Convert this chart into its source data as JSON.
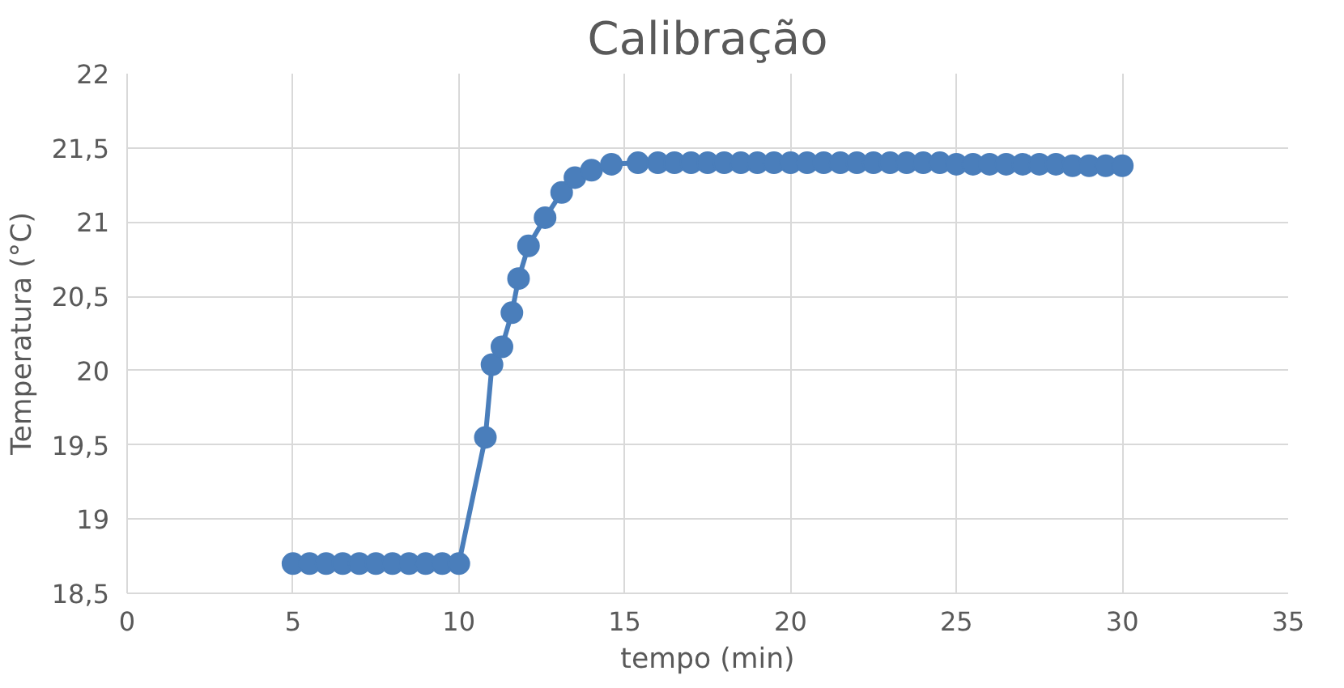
{
  "chart_data": {
    "type": "line",
    "title": "Calibração",
    "xlabel": "tempo (min)",
    "ylabel": "Temperatura (°C)",
    "x": [
      5,
      5.5,
      6,
      6.5,
      7,
      7.5,
      8,
      8.5,
      9,
      9.5,
      10,
      10.8,
      11.0,
      11.3,
      11.6,
      11.8,
      12.1,
      12.6,
      13.1,
      13.5,
      14.0,
      14.6,
      15.4,
      16,
      16.5,
      17,
      17.5,
      18,
      18.5,
      19,
      19.5,
      20,
      20.5,
      21,
      21.5,
      22,
      22.5,
      23,
      23.5,
      24,
      24.5,
      25,
      25.5,
      26,
      26.5,
      27,
      27.5,
      28,
      28.5,
      29,
      29.5,
      30
    ],
    "series": [
      {
        "color": "#4a7ebb",
        "values": [
          18.7,
          18.7,
          18.7,
          18.7,
          18.7,
          18.7,
          18.7,
          18.7,
          18.7,
          18.7,
          18.7,
          19.55,
          20.04,
          20.16,
          20.39,
          20.62,
          20.84,
          21.03,
          21.2,
          21.3,
          21.35,
          21.39,
          21.4,
          21.4,
          21.4,
          21.4,
          21.4,
          21.4,
          21.4,
          21.4,
          21.4,
          21.4,
          21.4,
          21.4,
          21.4,
          21.4,
          21.4,
          21.4,
          21.4,
          21.4,
          21.4,
          21.39,
          21.39,
          21.39,
          21.39,
          21.39,
          21.39,
          21.39,
          21.38,
          21.38,
          21.38,
          21.38
        ]
      }
    ],
    "xlim": [
      0,
      35
    ],
    "xticks": [
      0,
      5,
      10,
      15,
      20,
      25,
      30,
      35
    ],
    "ylim": [
      18.5,
      22
    ],
    "yticks": [
      {
        "value": 18.5,
        "label": "18,5"
      },
      19,
      {
        "value": 19.5,
        "label": "19,5"
      },
      20,
      {
        "value": 20.5,
        "label": "20,5"
      },
      21,
      {
        "value": 21.5,
        "label": "21,5"
      },
      22
    ],
    "grid": true,
    "marker": "circle",
    "line_style": "solid"
  }
}
